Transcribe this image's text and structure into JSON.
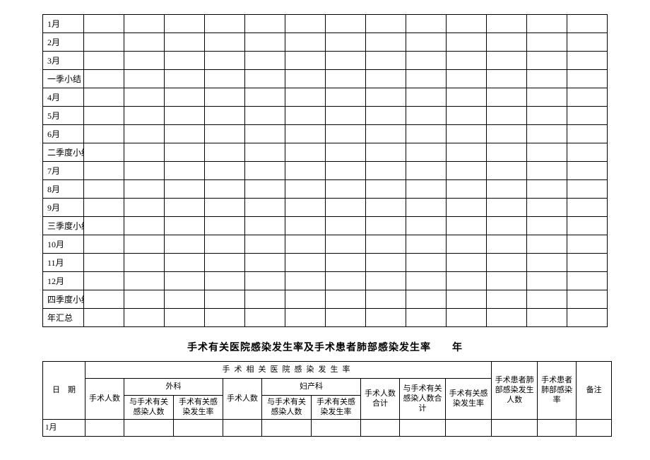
{
  "table1": {
    "col_count": 14,
    "row_labels": [
      "1月",
      "2月",
      "3月",
      "一季小结",
      "4月",
      "5月",
      "6月",
      "二季度小结",
      "7月",
      "8月",
      "9月",
      "三季度小结",
      "10月",
      "11月",
      "12月",
      "四季度小结",
      "年汇总"
    ]
  },
  "section_title": "手术有关医院感染发生率及手术患者肺部感染发生率　　年",
  "table2": {
    "top_span_label": "手术相关医院感染发生率",
    "group_surgery": "外科",
    "group_obgyn": "妇产科",
    "col_date": "日　期",
    "cols": {
      "c1": "手术人数",
      "c2": "与手术有关感染人数",
      "c3": "手术有关感染发生率",
      "c4": "手术人数",
      "c5": "与手术有关感染人数",
      "c6": "手术有关感染发生率",
      "c7": "手术人数合计",
      "c8": "与手术有关感染人数合计",
      "c9": "手术有关感染发生率",
      "c10": "手术患者肺部感染发生人数",
      "c11": "手术患者肺部感染率",
      "c12": "备注"
    },
    "data_rows": [
      "1月"
    ],
    "colors": {
      "background": "#ffffff",
      "border": "#000000",
      "text": "#000000"
    },
    "font": {
      "family": "SimSun",
      "body_size_pt": 11,
      "title_size_pt": 14,
      "title_weight": "bold"
    }
  }
}
